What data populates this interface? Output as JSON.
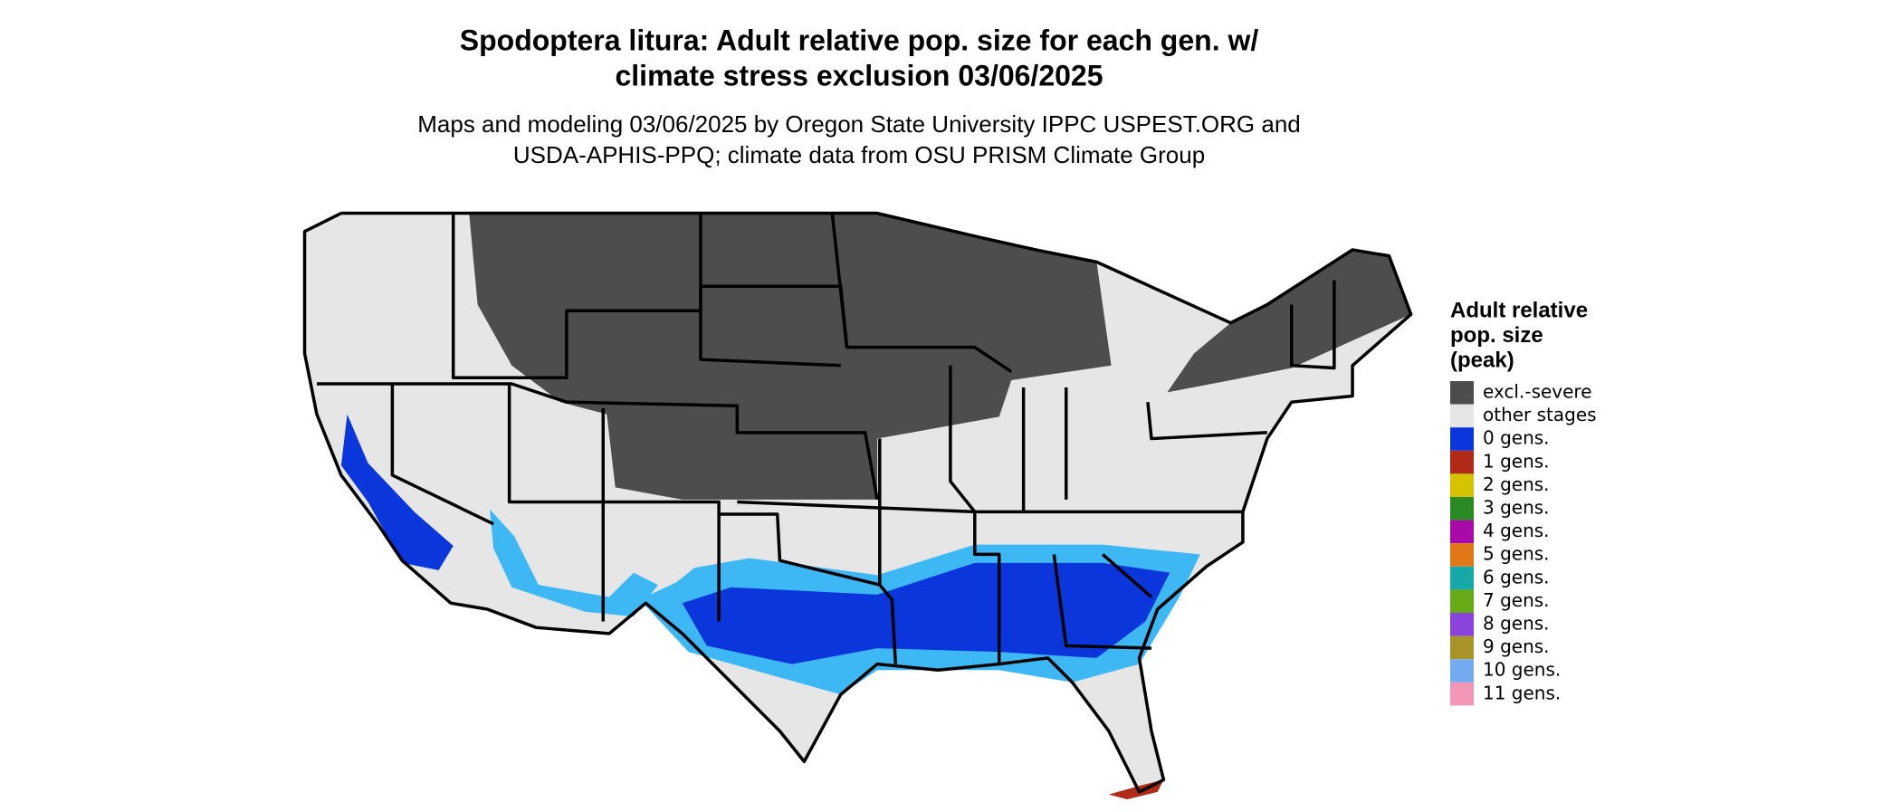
{
  "header": {
    "title": [
      "Spodoptera litura: Adult relative pop. size for each gen. w/",
      "climate stress exclusion 03/06/2025"
    ],
    "subtitle": [
      "Maps and modeling 03/06/2025 by Oregon State University IPPC USPEST.ORG and",
      "USDA-APHIS-PPQ; climate data from OSU PRISM Climate Group"
    ]
  },
  "legend": {
    "title": [
      "Adult relative",
      "pop. size",
      "(peak)"
    ],
    "items": [
      {
        "label": "excl.-severe",
        "color": "#4d4d4d"
      },
      {
        "label": "other stages",
        "color": "#e6e6e6"
      },
      {
        "label": "0 gens.",
        "color": "#0a36dc"
      },
      {
        "label": "1 gens.",
        "color": "#b02a18"
      },
      {
        "label": "2 gens.",
        "color": "#d6c300"
      },
      {
        "label": "3 gens.",
        "color": "#2a8a24"
      },
      {
        "label": "4 gens.",
        "color": "#a80aa8"
      },
      {
        "label": "5 gens.",
        "color": "#e07818"
      },
      {
        "label": "6 gens.",
        "color": "#17a8a8"
      },
      {
        "label": "7 gens.",
        "color": "#66aa18"
      },
      {
        "label": "8 gens.",
        "color": "#8a44dc"
      },
      {
        "label": "9 gens.",
        "color": "#a89428"
      },
      {
        "label": "10 gens.",
        "color": "#74aaf0"
      },
      {
        "label": "11 gens.",
        "color": "#f296b8"
      }
    ]
  }
}
